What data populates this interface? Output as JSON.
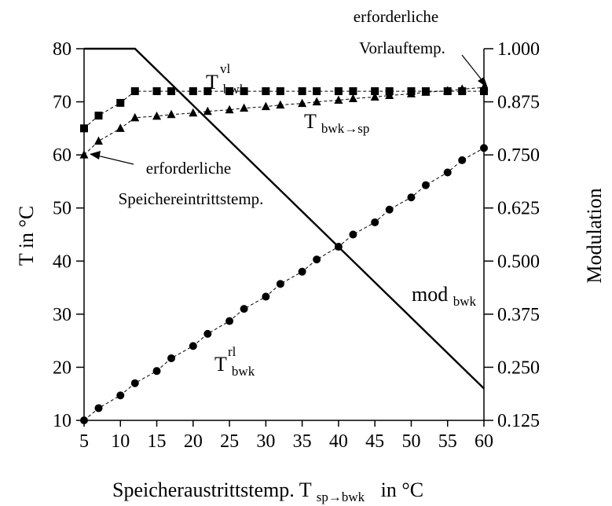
{
  "chart_data": {
    "type": "line",
    "x": [
      5,
      7,
      10,
      12,
      15,
      17,
      20,
      22,
      25,
      27,
      30,
      32,
      35,
      37,
      40,
      42,
      45,
      47,
      50,
      52,
      55,
      57,
      60
    ],
    "x_ticks": [
      "5",
      "10",
      "15",
      "20",
      "25",
      "30",
      "35",
      "40",
      "45",
      "50",
      "55",
      "60"
    ],
    "xlim": [
      5,
      60
    ],
    "y_left": {
      "label": "T  in °C",
      "lim": [
        10,
        80
      ],
      "ticks": [
        "10",
        "20",
        "30",
        "40",
        "50",
        "60",
        "70",
        "80"
      ]
    },
    "y_right": {
      "label": "Modulation",
      "lim": [
        0.125,
        1.0
      ],
      "ticks": [
        "0.125",
        "0.250",
        "0.375",
        "0.500",
        "0.625",
        "0.750",
        "0.875",
        "1.000"
      ]
    },
    "xlabel": {
      "main": "Speicheraustrittstemp. T",
      "sub": "sp→bwk",
      "unit": "in °C"
    },
    "series": [
      {
        "name": "T_bwk^vl",
        "marker": "square",
        "axis": "left",
        "x": [
          5,
          7,
          10,
          12,
          15,
          17,
          20,
          22,
          25,
          27,
          30,
          32,
          35,
          37,
          40,
          42,
          45,
          47,
          50,
          52,
          55,
          57,
          60
        ],
        "values": [
          65,
          67.4,
          69.8,
          72,
          72,
          72,
          72,
          72,
          72,
          72,
          72,
          72,
          72,
          72,
          72,
          72,
          72,
          72,
          72,
          72,
          72,
          72,
          72
        ]
      },
      {
        "name": "T_bwk→sp",
        "marker": "triangle",
        "axis": "left",
        "x": [
          5,
          7,
          10,
          12,
          15,
          17,
          20,
          22,
          25,
          27,
          30,
          32,
          35,
          37,
          40,
          42,
          45,
          47,
          50,
          52,
          55,
          57,
          60
        ],
        "values": [
          60,
          62.6,
          65,
          67,
          67.3,
          67.6,
          67.9,
          68.2,
          68.5,
          68.8,
          69.1,
          69.4,
          69.7,
          70,
          70.3,
          70.6,
          70.9,
          71.2,
          71.5,
          71.8,
          72.1,
          72.4,
          72.7
        ]
      },
      {
        "name": "T_bwk^rl",
        "marker": "circle",
        "axis": "left",
        "x": [
          5,
          7,
          10,
          12,
          15,
          17,
          20,
          22,
          25,
          27,
          30,
          32,
          35,
          37,
          40,
          42,
          45,
          47,
          50,
          52,
          55,
          57,
          60
        ],
        "values": [
          10,
          12.3,
          14.7,
          17,
          19.3,
          21.7,
          24,
          26.3,
          28.7,
          31,
          33.3,
          35.7,
          38,
          40.3,
          42.7,
          45,
          47.3,
          49.7,
          52,
          54.3,
          56.7,
          59,
          61.3
        ]
      },
      {
        "name": "mod_bwk",
        "marker": "none",
        "axis": "right",
        "x": [
          5,
          12,
          60
        ],
        "values": [
          1.0,
          1.0,
          0.2
        ]
      }
    ],
    "annotations": {
      "vl_base": "T",
      "vl_sub": "bwk",
      "vl_sup": "vl",
      "sp_base": "T",
      "sp_sub": "bwk→sp",
      "rl_base": "T",
      "rl_sub": "bwk",
      "rl_sup": "rl",
      "mod_base": "mod",
      "mod_sub": "bwk",
      "vorlauf_line1": "erforderliche",
      "vorlauf_line2": "Vorlauftemp.",
      "speicher_line1": "erforderliche",
      "speicher_line2": "Speichereintrittstemp."
    }
  }
}
